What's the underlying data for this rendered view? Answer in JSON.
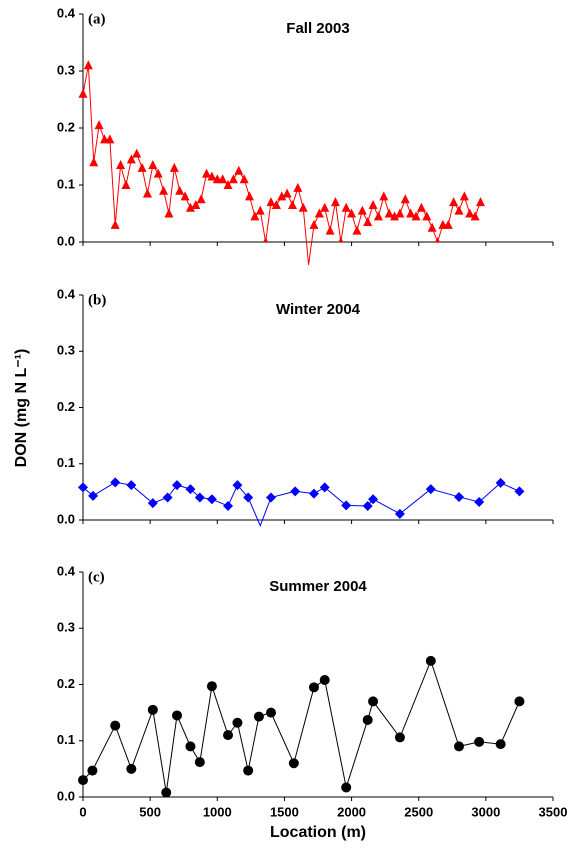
{
  "chart_data": [
    {
      "type": "line",
      "panel_label": "(a)",
      "title": "Fall 2003",
      "marker": "triangle",
      "x": [
        0,
        40,
        80,
        120,
        160,
        200,
        240,
        280,
        320,
        360,
        400,
        440,
        480,
        520,
        560,
        600,
        640,
        680,
        720,
        760,
        800,
        840,
        880,
        920,
        960,
        1000,
        1040,
        1080,
        1120,
        1160,
        1200,
        1240,
        1280,
        1320,
        1360,
        1400,
        1440,
        1480,
        1520,
        1560,
        1600,
        1640,
        1680,
        1720,
        1760,
        1800,
        1840,
        1880,
        1920,
        1960,
        2000,
        2040,
        2080,
        2120,
        2160,
        2200,
        2240,
        2280,
        2320,
        2360,
        2400,
        2440,
        2480,
        2520,
        2560,
        2600,
        2640,
        2680,
        2720,
        2760,
        2800,
        2840,
        2880,
        2920,
        2960
      ],
      "series": [
        {
          "color": "#ff0000",
          "values": [
            0.26,
            0.31,
            0.14,
            0.205,
            0.18,
            0.18,
            0.03,
            0.135,
            0.1,
            0.145,
            0.155,
            0.13,
            0.085,
            0.135,
            0.12,
            0.09,
            0.05,
            0.13,
            0.09,
            0.08,
            0.06,
            0.065,
            0.075,
            0.12,
            0.115,
            0.11,
            0.11,
            0.1,
            0.11,
            0.125,
            0.11,
            0.08,
            0.045,
            0.055,
            0.0,
            0.07,
            0.065,
            0.08,
            0.085,
            0.065,
            0.095,
            0.06,
            -0.04,
            0.03,
            0.05,
            0.06,
            0.02,
            0.07,
            0.0,
            0.06,
            0.05,
            0.02,
            0.055,
            0.035,
            0.065,
            0.045,
            0.08,
            0.05,
            0.045,
            0.05,
            0.075,
            0.05,
            0.045,
            0.06,
            0.045,
            0.025,
            0.0,
            0.03,
            0.03,
            0.07,
            0.055,
            0.08,
            0.05,
            0.045,
            0.07
          ]
        }
      ],
      "xlim": [
        0,
        3500
      ],
      "xticks": [
        0,
        500,
        1000,
        1500,
        2000,
        2500,
        3000,
        3500
      ],
      "ylim": [
        0,
        0.4
      ],
      "yticks": [
        {
          "value": 0,
          "label": "0.0"
        },
        0.1,
        0.2,
        0.3,
        0.4
      ]
    },
    {
      "type": "line",
      "panel_label": "(b)",
      "title": "Winter 2004",
      "marker": "diamond",
      "y_label": "DON (mg N L⁻¹)",
      "x": [
        0,
        75,
        240,
        360,
        520,
        630,
        700,
        800,
        870,
        960,
        1080,
        1150,
        1230,
        1320,
        1400,
        1580,
        1720,
        1800,
        1960,
        2120,
        2160,
        2360,
        2590,
        2800,
        2950,
        3110,
        3250
      ],
      "series": [
        {
          "color": "#0000ff",
          "values": [
            0.058,
            0.043,
            0.067,
            0.062,
            0.03,
            0.04,
            0.062,
            0.055,
            0.04,
            0.037,
            0.025,
            0.062,
            0.04,
            -0.01,
            0.04,
            0.051,
            0.047,
            0.058,
            0.026,
            0.025,
            0.037,
            0.011,
            0.055,
            0.041,
            0.032,
            0.066,
            0.051
          ]
        }
      ],
      "xlim": [
        0,
        3500
      ],
      "xticks": [
        0,
        500,
        1000,
        1500,
        2000,
        2500,
        3000,
        3500
      ],
      "ylim": [
        0,
        0.4
      ],
      "yticks": [
        {
          "value": 0,
          "label": "0.0"
        },
        0.1,
        0.2,
        0.3,
        0.4
      ]
    },
    {
      "type": "line",
      "panel_label": "(c)",
      "title": "Summer 2004",
      "marker": "circle",
      "x_label": "Location (m)",
      "x": [
        0,
        70,
        240,
        360,
        520,
        620,
        700,
        800,
        870,
        960,
        1080,
        1150,
        1230,
        1310,
        1400,
        1570,
        1720,
        1800,
        1960,
        2120,
        2160,
        2360,
        2590,
        2800,
        2950,
        3110,
        3250
      ],
      "series": [
        {
          "color": "#000000",
          "values": [
            0.03,
            0.047,
            0.127,
            0.05,
            0.155,
            0.008,
            0.145,
            0.09,
            0.062,
            0.197,
            0.11,
            0.132,
            0.047,
            0.143,
            0.15,
            0.06,
            0.195,
            0.208,
            0.017,
            0.137,
            0.17,
            0.106,
            0.242,
            0.09,
            0.098,
            0.094,
            0.17
          ]
        }
      ],
      "xlim": [
        0,
        3500
      ],
      "xticks": [
        0,
        500,
        1000,
        1500,
        2000,
        2500,
        3000,
        3500
      ],
      "ylim": [
        0,
        0.4
      ],
      "yticks": [
        {
          "value": 0,
          "label": "0.0"
        },
        0.1,
        0.2,
        0.3,
        0.4
      ]
    }
  ]
}
